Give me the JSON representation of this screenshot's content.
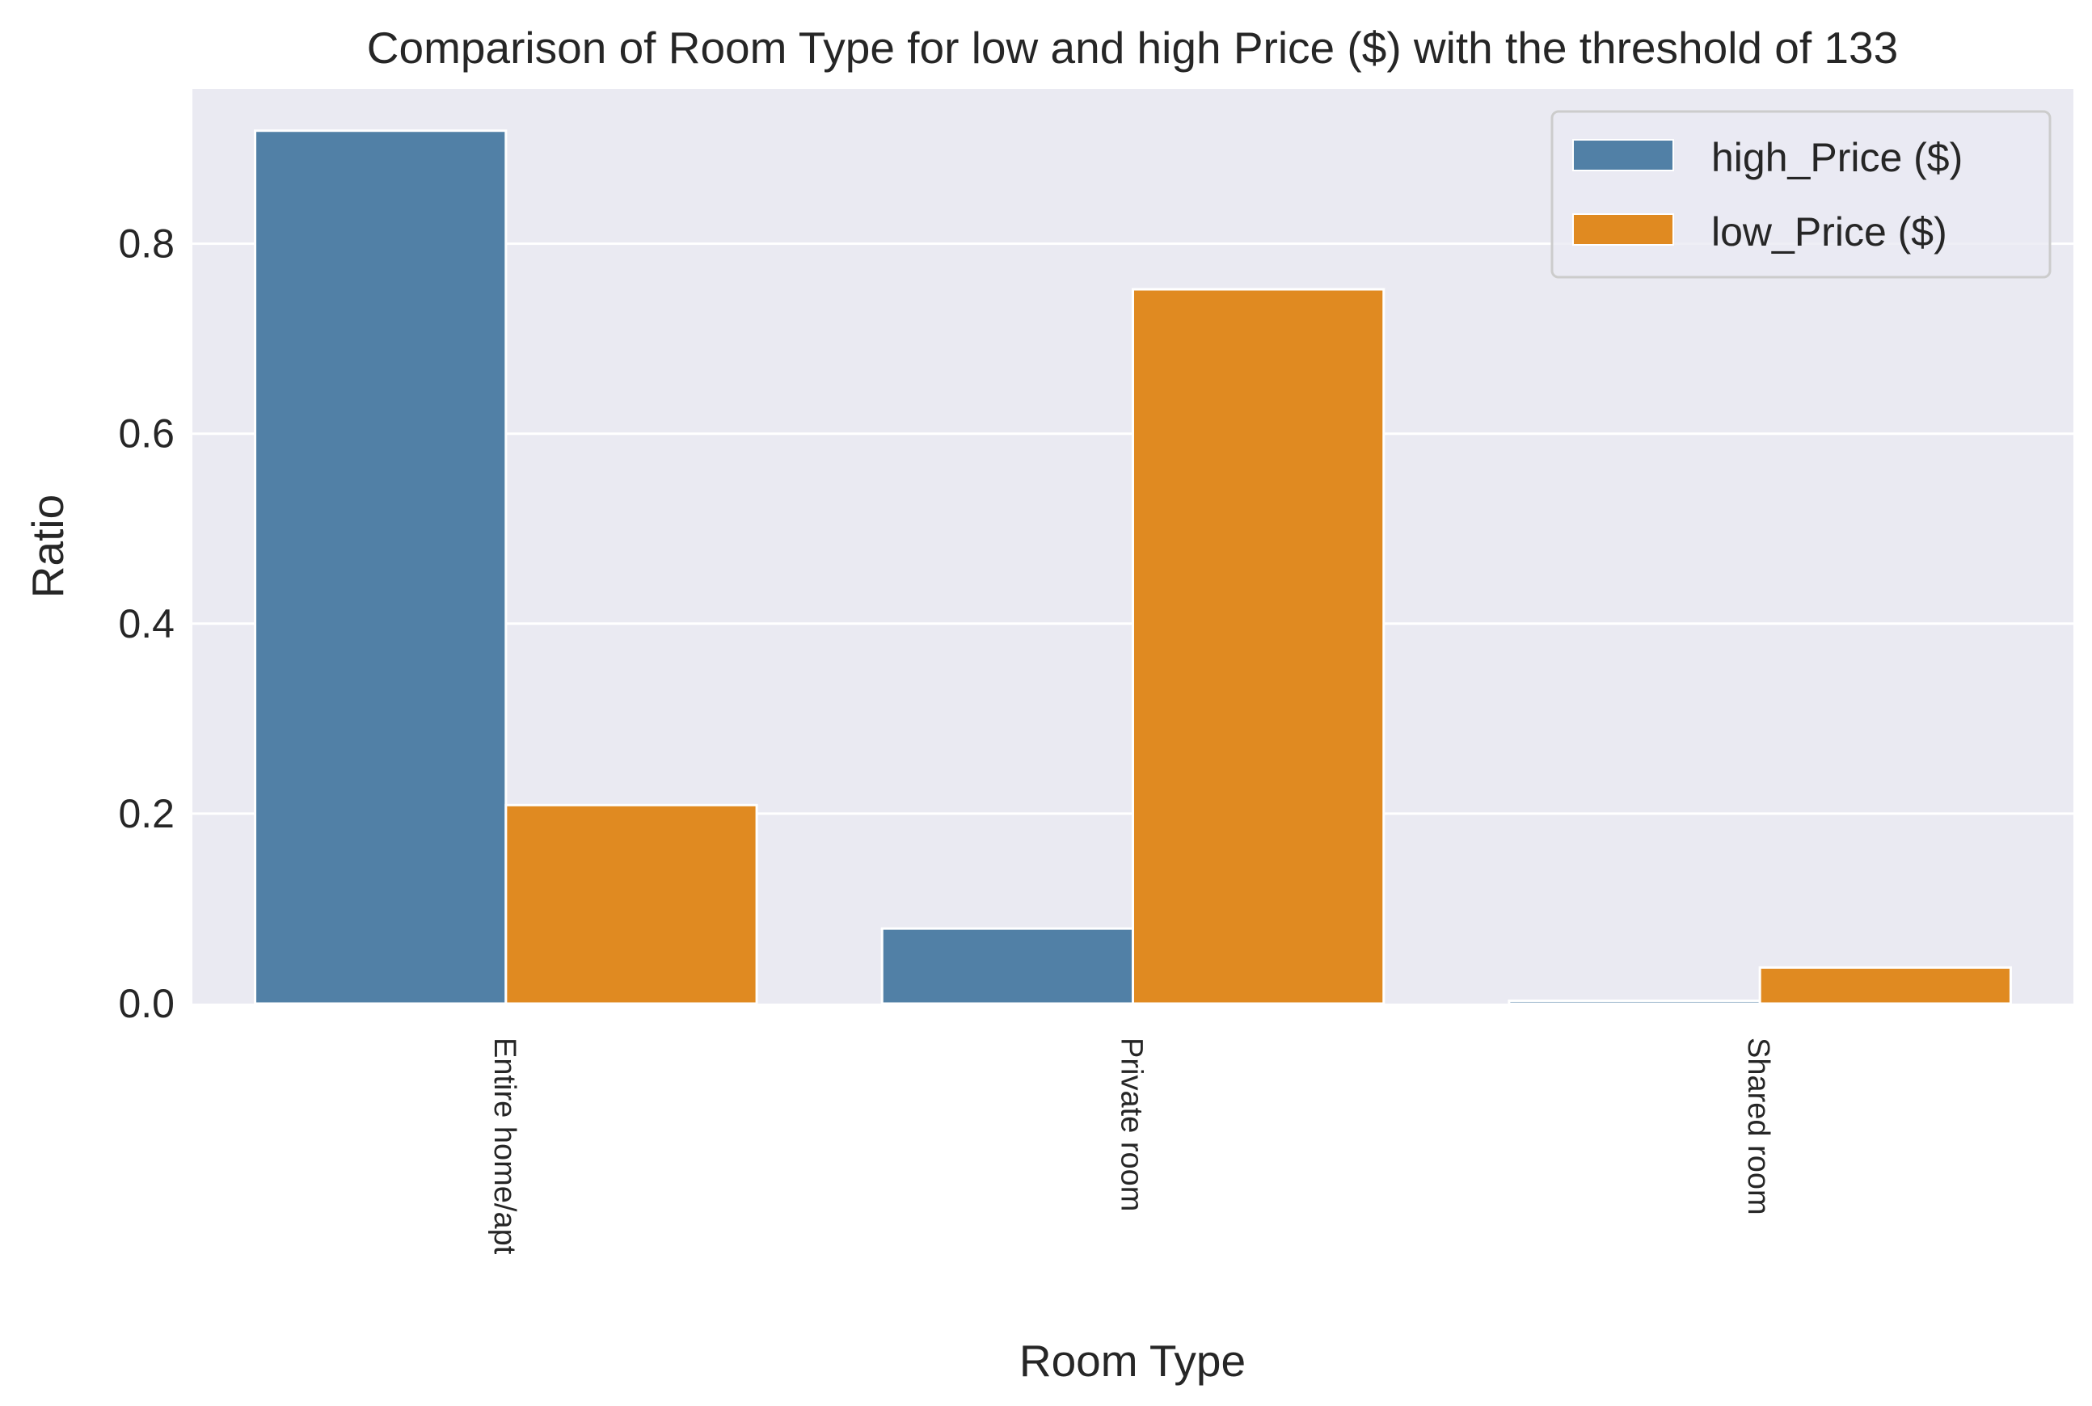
{
  "chart_data": {
    "type": "bar",
    "title": "Comparison of Room Type for low and high Price ($) with the threshold of 133",
    "xlabel": "Room Type",
    "ylabel": "Ratio",
    "categories": [
      "Entire home/apt",
      "Private room",
      "Shared room"
    ],
    "series": [
      {
        "name": "high_Price ($)",
        "color": "#5180a6",
        "values": [
          0.919,
          0.079,
          0.003
        ]
      },
      {
        "name": "low_Price ($)",
        "color": "#e08a21",
        "values": [
          0.209,
          0.752,
          0.038
        ]
      }
    ],
    "ylim": [
      0,
      0.963
    ],
    "yticks": [
      0.0,
      0.2,
      0.4,
      0.6,
      0.8
    ],
    "ytick_labels": [
      "0.0",
      "0.2",
      "0.4",
      "0.6",
      "0.8"
    ],
    "grid": true,
    "legend_position": "top-right",
    "background_color": "#eaeaf2"
  }
}
